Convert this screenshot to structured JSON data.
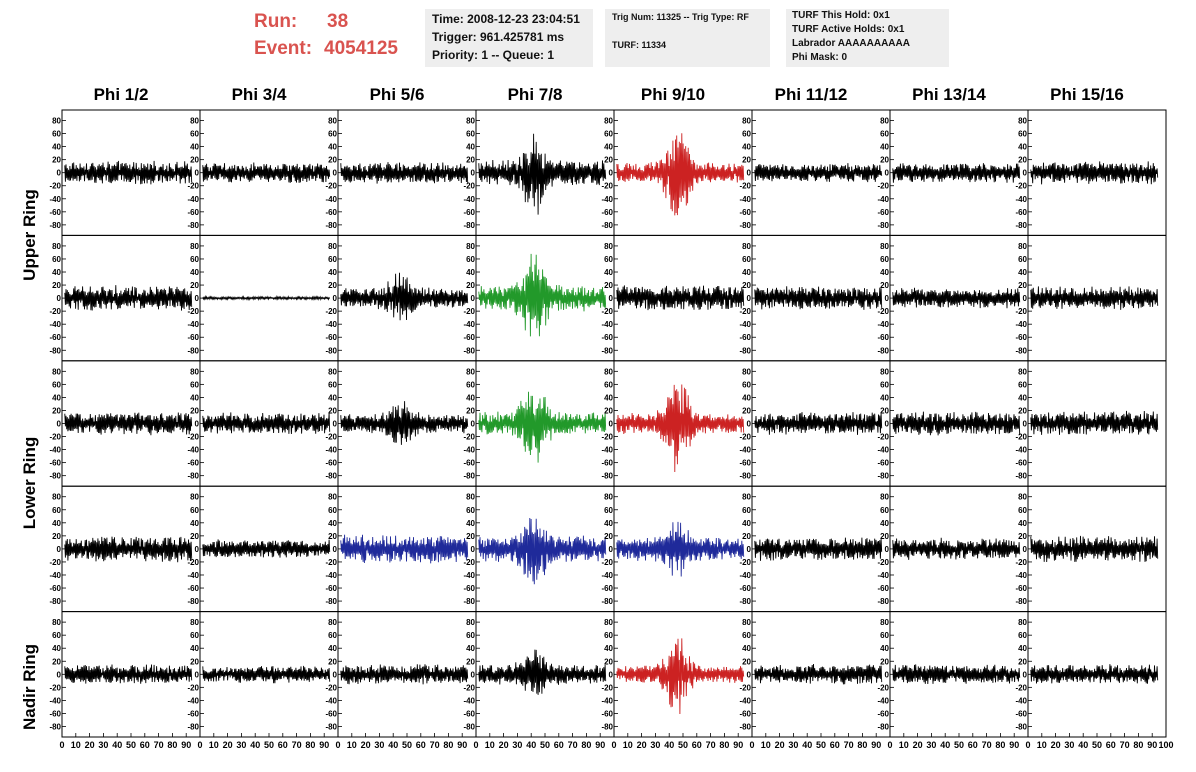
{
  "header": {
    "run_label": "Run:",
    "run_value": "38",
    "event_label": "Event:",
    "event_value": "4054125"
  },
  "info": {
    "time": "Time: 2008-12-23 23:04:51",
    "trigger": "Trigger: 961.425781 ms",
    "priority": "Priority: 1 -- Queue: 1",
    "trig_num": "Trig Num: 11325 -- Trig Type: RF",
    "turf": "TURF: 11334",
    "turf_this_hold": "TURF This Hold: 0x1",
    "turf_active_holds": "TURF Active Holds: 0x1",
    "labrador": "Labrador AAAAAAAAAA",
    "phi_mask": "Phi Mask: 0"
  },
  "columns": [
    "Phi 1/2",
    "Phi 3/4",
    "Phi 5/6",
    "Phi 7/8",
    "Phi 9/10",
    "Phi 11/12",
    "Phi 13/14",
    "Phi 15/16"
  ],
  "ring_labels": [
    "Upper Ring",
    "Lower Ring",
    "Nadir Ring"
  ],
  "colors": {
    "normal": "#000000",
    "red": "#cc2222",
    "green": "#22992a",
    "blue": "#1f2a9a",
    "header_red": "#d9534f",
    "info_bg": "#eeeeee"
  },
  "chart_data": {
    "type": "line",
    "xlim": [
      0,
      100
    ],
    "ylim": [
      -90,
      90
    ],
    "y_ticks": [
      -80,
      -60,
      -40,
      -20,
      0,
      20,
      40,
      60,
      80
    ],
    "x_ticks": [
      0,
      10,
      20,
      30,
      40,
      50,
      60,
      70,
      80,
      90,
      100
    ],
    "rows": 5,
    "cols": 8,
    "panels": [
      {
        "row": 0,
        "col": 0,
        "color": "normal",
        "amp": 16,
        "burst": 0
      },
      {
        "row": 0,
        "col": 1,
        "color": "normal",
        "amp": 14,
        "burst": 0
      },
      {
        "row": 0,
        "col": 2,
        "color": "normal",
        "amp": 15,
        "burst": 0
      },
      {
        "row": 0,
        "col": 3,
        "color": "normal",
        "amp": 18,
        "burst": 45
      },
      {
        "row": 0,
        "col": 4,
        "color": "red",
        "amp": 14,
        "burst": 60
      },
      {
        "row": 0,
        "col": 5,
        "color": "normal",
        "amp": 13,
        "burst": 0
      },
      {
        "row": 0,
        "col": 6,
        "color": "normal",
        "amp": 14,
        "burst": 0
      },
      {
        "row": 0,
        "col": 7,
        "color": "normal",
        "amp": 16,
        "burst": 0
      },
      {
        "row": 1,
        "col": 0,
        "color": "normal",
        "amp": 18,
        "burst": 0
      },
      {
        "row": 1,
        "col": 1,
        "color": "normal",
        "amp": 2,
        "burst": 0
      },
      {
        "row": 1,
        "col": 2,
        "color": "normal",
        "amp": 14,
        "burst": 30
      },
      {
        "row": 1,
        "col": 3,
        "color": "green",
        "amp": 18,
        "burst": 55
      },
      {
        "row": 1,
        "col": 4,
        "color": "normal",
        "amp": 18,
        "burst": 0
      },
      {
        "row": 1,
        "col": 5,
        "color": "normal",
        "amp": 16,
        "burst": 0
      },
      {
        "row": 1,
        "col": 6,
        "color": "normal",
        "amp": 14,
        "burst": 0
      },
      {
        "row": 1,
        "col": 7,
        "color": "normal",
        "amp": 16,
        "burst": 0
      },
      {
        "row": 2,
        "col": 0,
        "color": "normal",
        "amp": 16,
        "burst": 0
      },
      {
        "row": 2,
        "col": 1,
        "color": "normal",
        "amp": 15,
        "burst": 0
      },
      {
        "row": 2,
        "col": 2,
        "color": "normal",
        "amp": 14,
        "burst": 20
      },
      {
        "row": 2,
        "col": 3,
        "color": "green",
        "amp": 16,
        "burst": 50
      },
      {
        "row": 2,
        "col": 4,
        "color": "red",
        "amp": 15,
        "burst": 55
      },
      {
        "row": 2,
        "col": 5,
        "color": "normal",
        "amp": 16,
        "burst": 0
      },
      {
        "row": 2,
        "col": 6,
        "color": "normal",
        "amp": 17,
        "burst": 0
      },
      {
        "row": 2,
        "col": 7,
        "color": "normal",
        "amp": 17,
        "burst": 0
      },
      {
        "row": 3,
        "col": 0,
        "color": "normal",
        "amp": 18,
        "burst": 0
      },
      {
        "row": 3,
        "col": 1,
        "color": "normal",
        "amp": 13,
        "burst": 0
      },
      {
        "row": 3,
        "col": 2,
        "color": "blue",
        "amp": 20,
        "burst": 0
      },
      {
        "row": 3,
        "col": 3,
        "color": "blue",
        "amp": 18,
        "burst": 40
      },
      {
        "row": 3,
        "col": 4,
        "color": "blue",
        "amp": 16,
        "burst": 28
      },
      {
        "row": 3,
        "col": 5,
        "color": "normal",
        "amp": 16,
        "burst": 0
      },
      {
        "row": 3,
        "col": 6,
        "color": "normal",
        "amp": 15,
        "burst": 0
      },
      {
        "row": 3,
        "col": 7,
        "color": "normal",
        "amp": 18,
        "burst": 0
      },
      {
        "row": 4,
        "col": 0,
        "color": "normal",
        "amp": 14,
        "burst": 0
      },
      {
        "row": 4,
        "col": 1,
        "color": "normal",
        "amp": 12,
        "burst": 0
      },
      {
        "row": 4,
        "col": 2,
        "color": "normal",
        "amp": 14,
        "burst": 0
      },
      {
        "row": 4,
        "col": 3,
        "color": "normal",
        "amp": 14,
        "burst": 25
      },
      {
        "row": 4,
        "col": 4,
        "color": "red",
        "amp": 12,
        "burst": 50
      },
      {
        "row": 4,
        "col": 5,
        "color": "normal",
        "amp": 14,
        "burst": 0
      },
      {
        "row": 4,
        "col": 6,
        "color": "normal",
        "amp": 14,
        "burst": 0
      },
      {
        "row": 4,
        "col": 7,
        "color": "normal",
        "amp": 14,
        "burst": 0
      }
    ]
  }
}
